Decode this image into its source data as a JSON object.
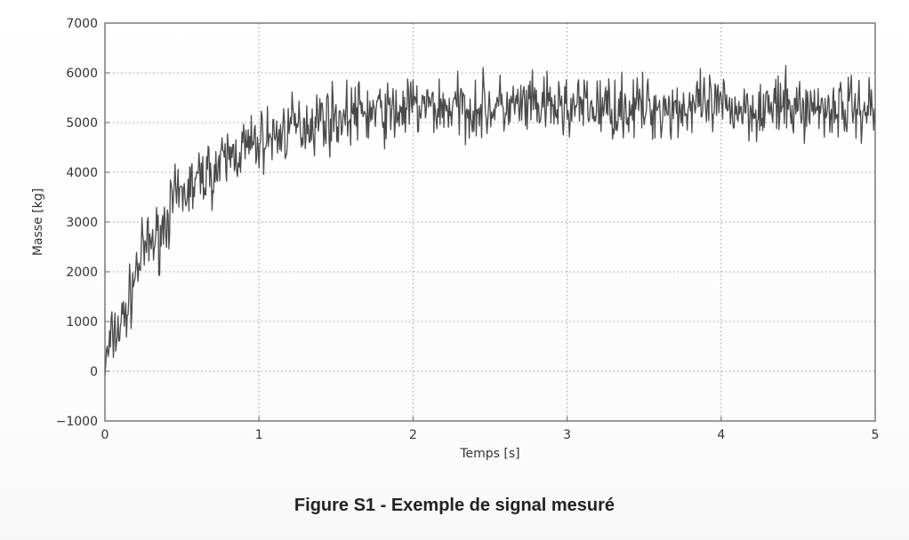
{
  "caption": "Figure S1 - Exemple de signal mesuré",
  "chart_data": {
    "type": "line",
    "xlabel": "Temps [s]",
    "ylabel": "Masse [kg]",
    "xlim": [
      0,
      5
    ],
    "ylim": [
      -1000,
      7000
    ],
    "x_ticks": [
      "0",
      "1",
      "2",
      "3",
      "4",
      "5"
    ],
    "y_ticks": [
      "−1000",
      "0",
      "1000",
      "2000",
      "3000",
      "4000",
      "5000",
      "6000",
      "7000"
    ],
    "grid": true,
    "grid_style": "dotted",
    "line_color": "#4a4a4a",
    "series": [
      {
        "x": [
          0,
          0.05,
          0.1,
          0.15,
          0.2,
          0.25,
          0.3,
          0.35,
          0.4,
          0.45,
          0.5,
          0.55,
          0.6,
          0.65,
          0.7,
          0.75,
          0.8,
          0.85,
          0.9,
          0.95,
          1.0,
          1.05,
          1.1,
          1.15,
          1.2,
          1.25,
          1.3,
          1.35,
          1.4,
          1.45,
          1.5,
          1.55,
          1.6,
          1.65,
          1.7,
          1.75,
          1.8,
          1.85,
          1.9,
          1.95,
          2.0,
          2.05,
          2.1,
          2.15,
          2.2,
          2.25,
          2.3,
          2.35,
          2.4,
          2.45,
          2.5,
          2.55,
          2.6,
          2.65,
          2.7,
          2.75,
          2.8,
          2.85,
          2.9,
          2.95,
          3.0,
          3.05,
          3.1,
          3.15,
          3.2,
          3.25,
          3.3,
          3.35,
          3.4,
          3.45,
          3.5,
          3.55,
          3.6,
          3.65,
          3.7,
          3.75,
          3.8,
          3.85,
          3.9,
          3.95,
          4.0,
          4.05,
          4.1,
          4.15,
          4.2,
          4.25,
          4.3,
          4.35,
          4.4,
          4.45,
          4.5,
          4.55,
          4.6,
          4.65,
          4.7,
          4.75,
          4.8,
          4.85,
          4.9,
          4.95,
          5.0
        ],
        "y": [
          100,
          700,
          900,
          1300,
          2000,
          2400,
          2600,
          2700,
          3100,
          3400,
          3500,
          3700,
          3800,
          4000,
          4000,
          4100,
          4300,
          4400,
          4500,
          4500,
          4600,
          4700,
          4700,
          4800,
          4900,
          4900,
          5000,
          5000,
          5100,
          5100,
          5100,
          5100,
          5200,
          5200,
          5200,
          5200,
          5200,
          5200,
          5200,
          5300,
          5300,
          5300,
          5300,
          5300,
          5300,
          5300,
          5300,
          5300,
          5300,
          5300,
          5300,
          5300,
          5300,
          5300,
          5300,
          5300,
          5300,
          5300,
          5300,
          5300,
          5300,
          5300,
          5300,
          5300,
          5300,
          5300,
          5300,
          5300,
          5300,
          5300,
          5300,
          5300,
          5300,
          5300,
          5300,
          5300,
          5300,
          5300,
          5300,
          5300,
          5300,
          5300,
          5300,
          5300,
          5300,
          5300,
          5300,
          5300,
          5300,
          5300,
          5300,
          5300,
          5300,
          5300,
          5300,
          5300,
          5300,
          5300,
          5300,
          5300,
          5300
        ]
      }
    ]
  }
}
